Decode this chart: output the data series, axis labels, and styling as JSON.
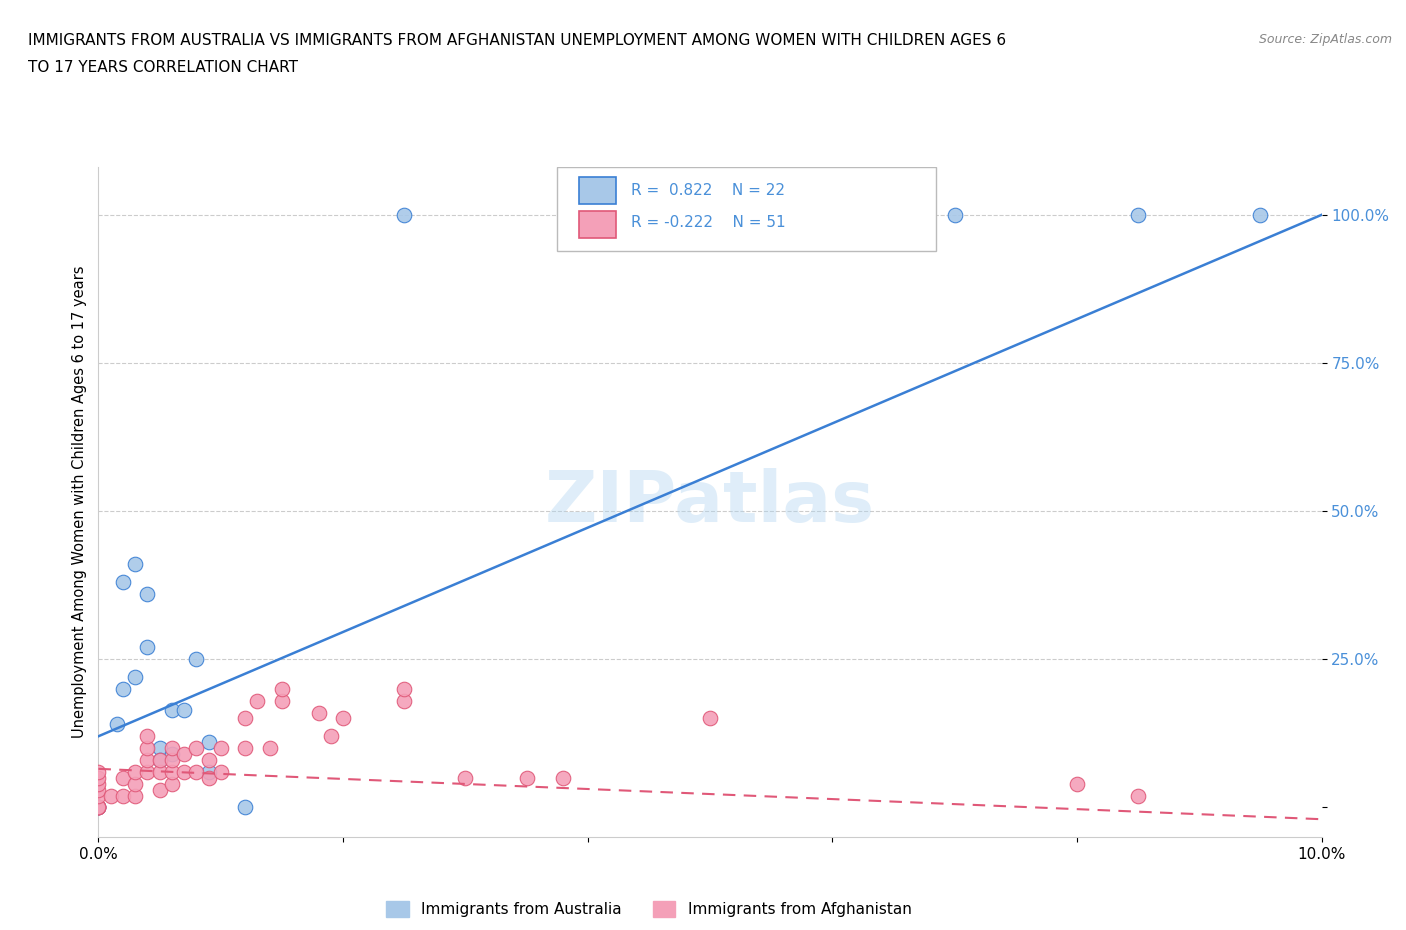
{
  "title_line1": "IMMIGRANTS FROM AUSTRALIA VS IMMIGRANTS FROM AFGHANISTAN UNEMPLOYMENT AMONG WOMEN WITH CHILDREN AGES 6",
  "title_line2": "TO 17 YEARS CORRELATION CHART",
  "source": "Source: ZipAtlas.com",
  "ylabel": "Unemployment Among Women with Children Ages 6 to 17 years",
  "watermark": "ZIPatlas",
  "legend_australia": "Immigrants from Australia",
  "legend_afghanistan": "Immigrants from Afghanistan",
  "R_australia": 0.822,
  "N_australia": 22,
  "R_afghanistan": -0.222,
  "N_afghanistan": 51,
  "color_australia": "#a8c8e8",
  "color_afghanistan": "#f4a0b8",
  "trendline_australia": "#3a7fd4",
  "trendline_afghanistan": "#e05878",
  "tick_label_color": "#4a90d9",
  "xlim": [
    0.0,
    0.1
  ],
  "ylim": [
    -0.05,
    1.08
  ],
  "aus_x": [
    0.0015,
    0.002,
    0.002,
    0.003,
    0.003,
    0.004,
    0.004,
    0.005,
    0.005,
    0.006,
    0.006,
    0.007,
    0.008,
    0.009,
    0.009,
    0.012,
    0.0,
    0.0,
    0.025,
    0.07,
    0.085,
    0.095
  ],
  "aus_y": [
    0.14,
    0.2,
    0.38,
    0.22,
    0.41,
    0.36,
    0.27,
    0.1,
    0.08,
    0.09,
    0.165,
    0.165,
    0.25,
    0.11,
    0.06,
    0.0,
    0.0,
    0.0,
    1.0,
    1.0,
    1.0,
    1.0
  ],
  "afg_x": [
    0.0,
    0.0,
    0.0,
    0.0,
    0.0,
    0.0,
    0.0,
    0.0,
    0.0,
    0.001,
    0.002,
    0.002,
    0.003,
    0.003,
    0.003,
    0.004,
    0.004,
    0.004,
    0.004,
    0.005,
    0.005,
    0.005,
    0.006,
    0.006,
    0.006,
    0.006,
    0.007,
    0.007,
    0.008,
    0.008,
    0.009,
    0.009,
    0.01,
    0.01,
    0.012,
    0.012,
    0.013,
    0.014,
    0.015,
    0.015,
    0.018,
    0.019,
    0.02,
    0.025,
    0.025,
    0.03,
    0.035,
    0.038,
    0.05,
    0.08,
    0.085
  ],
  "afg_y": [
    0.0,
    0.0,
    0.0,
    0.0,
    0.02,
    0.03,
    0.04,
    0.05,
    0.06,
    0.02,
    0.02,
    0.05,
    0.02,
    0.04,
    0.06,
    0.06,
    0.08,
    0.1,
    0.12,
    0.03,
    0.06,
    0.08,
    0.04,
    0.06,
    0.08,
    0.1,
    0.06,
    0.09,
    0.06,
    0.1,
    0.05,
    0.08,
    0.06,
    0.1,
    0.1,
    0.15,
    0.18,
    0.1,
    0.18,
    0.2,
    0.16,
    0.12,
    0.15,
    0.18,
    0.2,
    0.05,
    0.05,
    0.05,
    0.15,
    0.04,
    0.02
  ],
  "aus_trendline_x": [
    0.0,
    0.1
  ],
  "aus_trendline_y": [
    0.12,
    1.0
  ],
  "afg_trendline_x": [
    0.0,
    0.1
  ],
  "afg_trendline_y": [
    0.065,
    -0.02
  ]
}
